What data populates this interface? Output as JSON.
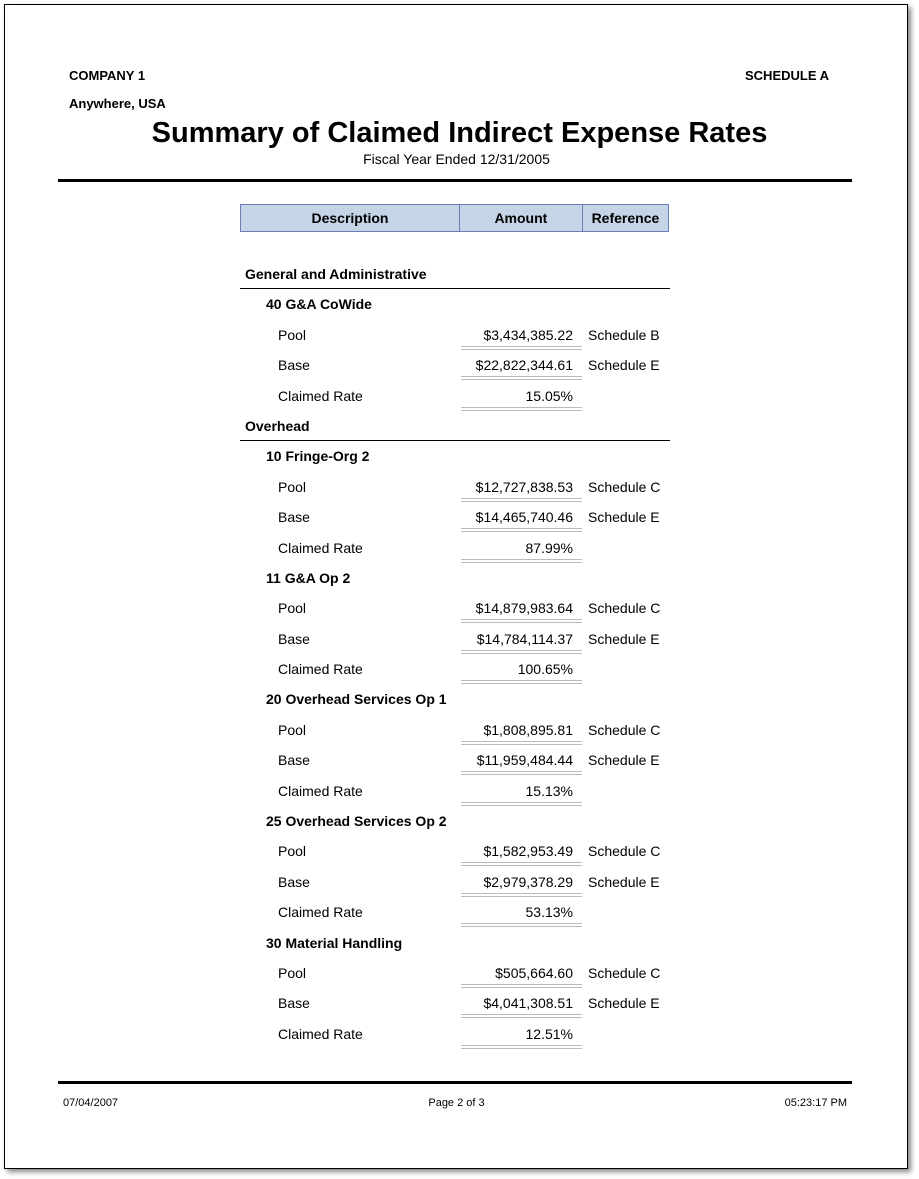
{
  "header": {
    "company": "COMPANY 1",
    "schedule": "SCHEDULE A",
    "location": "Anywhere, USA",
    "title": "Summary of Claimed Indirect Expense Rates",
    "subtitle": "Fiscal Year Ended 12/31/2005"
  },
  "table": {
    "columns": [
      "Description",
      "Amount",
      "Reference"
    ],
    "sections": [
      {
        "name": "General and Administrative",
        "groups": [
          {
            "name": "40 G&A CoWide",
            "items": [
              {
                "label": "Pool",
                "amount": "$3,434,385.22",
                "ref": "Schedule B"
              },
              {
                "label": "Base",
                "amount": "$22,822,344.61",
                "ref": "Schedule E"
              },
              {
                "label": "Claimed Rate",
                "amount": "15.05%",
                "ref": ""
              }
            ]
          }
        ]
      },
      {
        "name": "Overhead",
        "groups": [
          {
            "name": "10 Fringe-Org 2",
            "items": [
              {
                "label": "Pool",
                "amount": "$12,727,838.53",
                "ref": "Schedule C"
              },
              {
                "label": "Base",
                "amount": "$14,465,740.46",
                "ref": "Schedule E"
              },
              {
                "label": "Claimed Rate",
                "amount": "87.99%",
                "ref": ""
              }
            ]
          },
          {
            "name": "11 G&A Op 2",
            "items": [
              {
                "label": "Pool",
                "amount": "$14,879,983.64",
                "ref": "Schedule C"
              },
              {
                "label": "Base",
                "amount": "$14,784,114.37",
                "ref": "Schedule E"
              },
              {
                "label": "Claimed Rate",
                "amount": "100.65%",
                "ref": ""
              }
            ]
          },
          {
            "name": "20 Overhead Services Op 1",
            "items": [
              {
                "label": "Pool",
                "amount": "$1,808,895.81",
                "ref": "Schedule C"
              },
              {
                "label": "Base",
                "amount": "$11,959,484.44",
                "ref": "Schedule E"
              },
              {
                "label": "Claimed Rate",
                "amount": "15.13%",
                "ref": ""
              }
            ]
          },
          {
            "name": "25 Overhead Services Op 2",
            "items": [
              {
                "label": "Pool",
                "amount": "$1,582,953.49",
                "ref": "Schedule C"
              },
              {
                "label": "Base",
                "amount": "$2,979,378.29",
                "ref": "Schedule E"
              },
              {
                "label": "Claimed Rate",
                "amount": "53.13%",
                "ref": ""
              }
            ]
          },
          {
            "name": "30 Material Handling",
            "items": [
              {
                "label": "Pool",
                "amount": "$505,664.60",
                "ref": "Schedule C"
              },
              {
                "label": "Base",
                "amount": "$4,041,308.51",
                "ref": "Schedule E"
              },
              {
                "label": "Claimed Rate",
                "amount": "12.51%",
                "ref": ""
              }
            ]
          }
        ]
      }
    ]
  },
  "footer": {
    "date": "07/04/2007",
    "page": "Page 2 of 3",
    "time": "05:23:17 PM"
  }
}
